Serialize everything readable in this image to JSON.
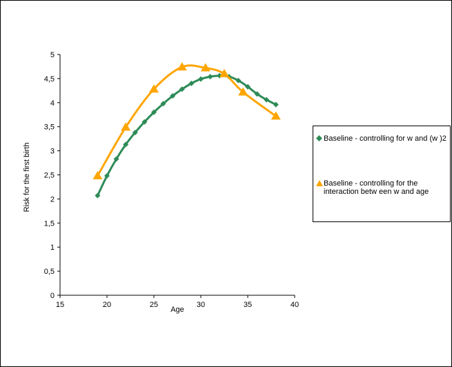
{
  "colors": {
    "series1": "#2e8b57",
    "series2": "#ffa500",
    "axis": "#000000",
    "background": "#ffffff"
  },
  "chart_data": {
    "type": "line",
    "title": "",
    "xlabel": "Age",
    "ylabel": "Risk for the first birth",
    "xlim": [
      15,
      40
    ],
    "ylim": [
      0,
      5
    ],
    "x_ticks": [
      "15",
      "20",
      "25",
      "30",
      "35",
      "40"
    ],
    "y_ticks": [
      "0",
      "0,5",
      "1",
      "1,5",
      "2",
      "2,5",
      "3",
      "3,5",
      "4",
      "4,5",
      "5"
    ],
    "grid": false,
    "legend_position": "right",
    "series": [
      {
        "name": "Baseline - controlling for w and (w )2",
        "marker": "diamond",
        "color": "#2e8b57",
        "x": [
          19,
          20,
          21,
          22,
          23,
          24,
          25,
          26,
          27,
          28,
          29,
          30,
          31,
          32,
          33,
          34,
          35,
          36,
          37,
          38
        ],
        "y": [
          2.07,
          2.48,
          2.83,
          3.13,
          3.38,
          3.6,
          3.8,
          3.98,
          4.14,
          4.28,
          4.4,
          4.49,
          4.54,
          4.56,
          4.54,
          4.46,
          4.33,
          4.18,
          4.06,
          3.96
        ]
      },
      {
        "name": "Baseline - controlling for the interaction betw een w and age",
        "marker": "triangle",
        "color": "#ffa500",
        "x": [
          19,
          22,
          25,
          28,
          30.5,
          32.5,
          34.5,
          38
        ],
        "y": [
          2.48,
          3.49,
          4.28,
          4.74,
          4.72,
          4.6,
          4.22,
          3.72
        ]
      }
    ]
  }
}
